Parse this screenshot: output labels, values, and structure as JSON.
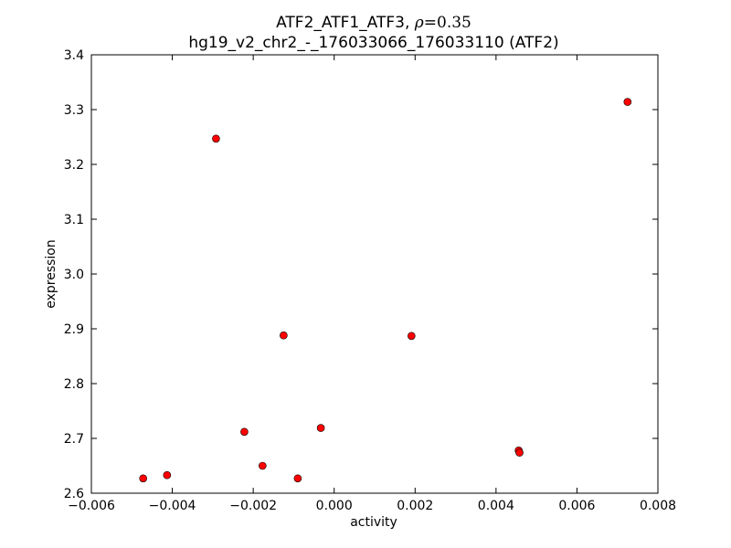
{
  "chart_data": {
    "type": "scatter",
    "title_line1_prefix": "ATF2_ATF1_ATF3, ",
    "title_rho_symbol": "ρ",
    "title_rho_value": "=0.35",
    "title_line2": "hg19_v2_chr2_-_176033066_176033110 (ATF2)",
    "xlabel": "activity",
    "ylabel": "expression",
    "xlim": [
      -0.006,
      0.008
    ],
    "ylim": [
      2.6,
      3.4
    ],
    "xticks": [
      -0.006,
      -0.004,
      -0.002,
      0.0,
      0.002,
      0.004,
      0.006,
      0.008
    ],
    "xtick_labels": [
      "−0.006",
      "−0.004",
      "−0.002",
      "0.000",
      "0.002",
      "0.004",
      "0.006",
      "0.008"
    ],
    "yticks": [
      2.6,
      2.7,
      2.8,
      2.9,
      3.0,
      3.1,
      3.2,
      3.3,
      3.4
    ],
    "ytick_labels": [
      "2.6",
      "2.7",
      "2.8",
      "2.9",
      "3.0",
      "3.1",
      "3.2",
      "3.3",
      "3.4"
    ],
    "grid": false,
    "marker_color": "#ff0000",
    "marker_edge_color": "#000000",
    "points": [
      {
        "x": -0.00472,
        "y": 2.627
      },
      {
        "x": -0.00413,
        "y": 2.633
      },
      {
        "x": -0.00292,
        "y": 3.247
      },
      {
        "x": -0.00222,
        "y": 2.712
      },
      {
        "x": -0.00177,
        "y": 2.65
      },
      {
        "x": -0.00125,
        "y": 2.888
      },
      {
        "x": -0.0009,
        "y": 2.627
      },
      {
        "x": -0.00033,
        "y": 2.719
      },
      {
        "x": 0.00191,
        "y": 2.887
      },
      {
        "x": 0.00456,
        "y": 2.678
      },
      {
        "x": 0.00458,
        "y": 2.674
      },
      {
        "x": 0.00725,
        "y": 3.314
      }
    ]
  }
}
